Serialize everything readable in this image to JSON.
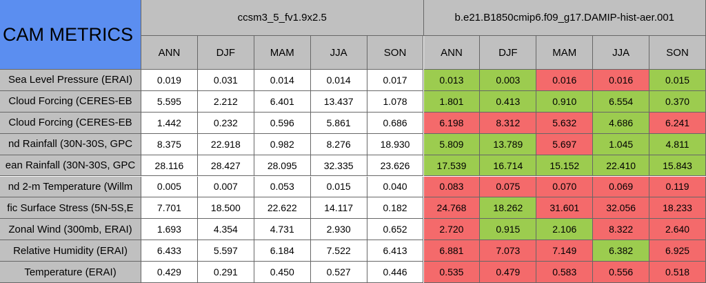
{
  "title": "CAM METRICS",
  "groups": [
    {
      "name": "ccsm3_5_fv1.9x2.5",
      "seasons": [
        "ANN",
        "DJF",
        "MAM",
        "JJA",
        "SON"
      ]
    },
    {
      "name": "b.e21.B1850cmip6.f09_g17.DAMIP-hist-aer.001",
      "seasons": [
        "ANN",
        "DJF",
        "MAM",
        "JJA",
        "SON"
      ]
    }
  ],
  "colors": {
    "good": "#9ccc4f",
    "bad": "#f46a6b",
    "plain": "#ffffff"
  },
  "rows": [
    {
      "label": "Sea Level Pressure (ERAI)",
      "values": [
        "0.019",
        "0.031",
        "0.014",
        "0.014",
        "0.017",
        "0.013",
        "0.003",
        "0.016",
        "0.016",
        "0.015"
      ],
      "status": [
        "plain",
        "plain",
        "plain",
        "plain",
        "plain",
        "good",
        "good",
        "bad",
        "bad",
        "good"
      ]
    },
    {
      "label": "Cloud Forcing (CERES-EB",
      "values": [
        "5.595",
        "2.212",
        "6.401",
        "13.437",
        "1.078",
        "1.801",
        "0.413",
        "0.910",
        "6.554",
        "0.370"
      ],
      "status": [
        "plain",
        "plain",
        "plain",
        "plain",
        "plain",
        "good",
        "good",
        "good",
        "good",
        "good"
      ]
    },
    {
      "label": "Cloud Forcing (CERES-EB",
      "values": [
        "1.442",
        "0.232",
        "0.596",
        "5.861",
        "0.686",
        "6.198",
        "8.312",
        "5.632",
        "4.686",
        "6.241"
      ],
      "status": [
        "plain",
        "plain",
        "plain",
        "plain",
        "plain",
        "bad",
        "bad",
        "bad",
        "good",
        "bad"
      ]
    },
    {
      "label": "nd Rainfall (30N-30S, GPC",
      "values": [
        "8.375",
        "22.918",
        "0.982",
        "8.276",
        "18.930",
        "5.809",
        "13.789",
        "5.697",
        "1.045",
        "4.811"
      ],
      "status": [
        "plain",
        "plain",
        "plain",
        "plain",
        "plain",
        "good",
        "good",
        "bad",
        "good",
        "good"
      ]
    },
    {
      "label": "ean Rainfall (30N-30S, GPC",
      "values": [
        "28.116",
        "28.427",
        "28.095",
        "32.335",
        "23.626",
        "17.539",
        "16.714",
        "15.152",
        "22.410",
        "15.843"
      ],
      "status": [
        "plain",
        "plain",
        "plain",
        "plain",
        "plain",
        "good",
        "good",
        "good",
        "good",
        "good"
      ]
    },
    {
      "label": "nd 2-m Temperature (Willm",
      "values": [
        "0.005",
        "0.007",
        "0.053",
        "0.015",
        "0.040",
        "0.083",
        "0.075",
        "0.070",
        "0.069",
        "0.119"
      ],
      "status": [
        "plain",
        "plain",
        "plain",
        "plain",
        "plain",
        "bad",
        "bad",
        "bad",
        "bad",
        "bad"
      ]
    },
    {
      "label": "fic Surface Stress (5N-5S,E",
      "values": [
        "7.701",
        "18.500",
        "22.622",
        "14.117",
        "0.182",
        "24.768",
        "18.262",
        "31.601",
        "32.056",
        "18.233"
      ],
      "status": [
        "plain",
        "plain",
        "plain",
        "plain",
        "plain",
        "bad",
        "good",
        "bad",
        "bad",
        "bad"
      ]
    },
    {
      "label": "Zonal Wind (300mb, ERAI)",
      "values": [
        "1.693",
        "4.354",
        "4.731",
        "2.930",
        "0.652",
        "2.720",
        "0.915",
        "2.106",
        "8.322",
        "2.640"
      ],
      "status": [
        "plain",
        "plain",
        "plain",
        "plain",
        "plain",
        "bad",
        "good",
        "good",
        "bad",
        "bad"
      ]
    },
    {
      "label": "Relative Humidity (ERAI)",
      "values": [
        "6.433",
        "5.597",
        "6.184",
        "7.522",
        "6.413",
        "6.881",
        "7.073",
        "7.149",
        "6.382",
        "6.925"
      ],
      "status": [
        "plain",
        "plain",
        "plain",
        "plain",
        "plain",
        "bad",
        "bad",
        "bad",
        "good",
        "bad"
      ]
    },
    {
      "label": "Temperature (ERAI)",
      "values": [
        "0.429",
        "0.291",
        "0.450",
        "0.527",
        "0.446",
        "0.535",
        "0.479",
        "0.583",
        "0.556",
        "0.518"
      ],
      "status": [
        "plain",
        "plain",
        "plain",
        "plain",
        "plain",
        "bad",
        "bad",
        "bad",
        "bad",
        "bad"
      ]
    }
  ]
}
